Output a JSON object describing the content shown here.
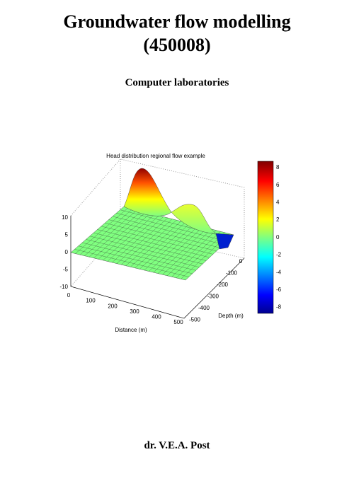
{
  "header": {
    "title_line1": "Groundwater flow modelling",
    "title_line2": "(450008)",
    "subtitle": "Computer laboratories"
  },
  "figure": {
    "title": "Head distribution regional flow example",
    "z_ticks": [
      "10",
      "5",
      "0",
      "-5",
      "-10"
    ],
    "x_ticks": [
      "0",
      "100",
      "200",
      "300",
      "400",
      "500"
    ],
    "x_label": "Distance (m)",
    "y_ticks": [
      "0",
      "-100",
      "-200",
      "-300",
      "-400",
      "-500"
    ],
    "y_label": "Depth (m)",
    "colorbar_ticks": [
      "8",
      "6",
      "4",
      "2",
      "0",
      "-2",
      "-4",
      "-6",
      "-8"
    ]
  },
  "footer": {
    "author": "dr. V.E.A. Post"
  }
}
